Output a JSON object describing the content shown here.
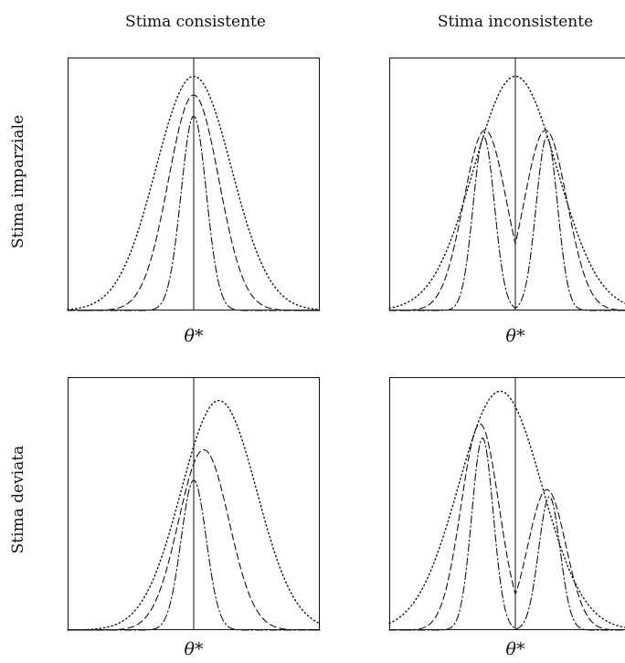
{
  "figure": {
    "col_titles": [
      "Stima consistente",
      "Stima inconsistente"
    ],
    "row_titles": [
      "Stima imparziale",
      "Stima deviata"
    ],
    "x_symbol": "θ*"
  },
  "colors": {
    "line": "#111111",
    "frame": "#111111"
  },
  "chart_data": [
    {
      "type": "line",
      "title": "",
      "column": "Stima consistente",
      "row": "Stima imparziale",
      "xlabel": "θ*",
      "xlim": [
        -1,
        1
      ],
      "ylim": [
        0,
        1.08
      ],
      "reference_x": 0,
      "grid": false,
      "series": [
        {
          "style": "dotted",
          "components": [
            {
              "mu": 0.0,
              "sigma": 0.3,
              "h": 1.0
            }
          ]
        },
        {
          "style": "dashed",
          "components": [
            {
              "mu": 0.0,
              "sigma": 0.2,
              "h": 0.92
            }
          ]
        },
        {
          "style": "dashdot",
          "components": [
            {
              "mu": 0.0,
              "sigma": 0.1,
              "h": 0.83
            }
          ]
        }
      ]
    },
    {
      "type": "line",
      "title": "",
      "column": "Stima inconsistente",
      "row": "Stima imparziale",
      "xlabel": "θ*",
      "xlim": [
        -1,
        1
      ],
      "ylim": [
        0,
        1.08
      ],
      "reference_x": 0,
      "grid": false,
      "series": [
        {
          "style": "dotted",
          "components": [
            {
              "mu": 0.0,
              "sigma": 0.33,
              "h": 1.0
            }
          ]
        },
        {
          "style": "dashed",
          "components": [
            {
              "mu": -0.24,
              "sigma": 0.17,
              "h": 0.77
            },
            {
              "mu": 0.24,
              "sigma": 0.17,
              "h": 0.77
            }
          ]
        },
        {
          "style": "dashdot",
          "components": [
            {
              "mu": -0.25,
              "sigma": 0.085,
              "h": 0.74
            },
            {
              "mu": 0.25,
              "sigma": 0.085,
              "h": 0.74
            }
          ]
        }
      ]
    },
    {
      "type": "line",
      "title": "",
      "column": "Stima consistente",
      "row": "Stima deviata",
      "xlabel": "θ*",
      "xlim": [
        -1,
        1
      ],
      "ylim": [
        0,
        1.08
      ],
      "reference_x": 0,
      "grid": false,
      "series": [
        {
          "style": "dotted",
          "components": [
            {
              "mu": 0.2,
              "sigma": 0.3,
              "h": 0.98
            }
          ]
        },
        {
          "style": "dashed",
          "components": [
            {
              "mu": 0.08,
              "sigma": 0.2,
              "h": 0.77
            }
          ]
        },
        {
          "style": "dashdot",
          "components": [
            {
              "mu": 0.0,
              "sigma": 0.1,
              "h": 0.64
            }
          ]
        }
      ]
    },
    {
      "type": "line",
      "title": "",
      "column": "Stima inconsistente",
      "row": "Stima deviata",
      "xlabel": "θ*",
      "xlim": [
        -1,
        1
      ],
      "ylim": [
        0,
        1.08
      ],
      "reference_x": 0,
      "grid": false,
      "series": [
        {
          "style": "dotted",
          "components": [
            {
              "mu": -0.12,
              "sigma": 0.33,
              "h": 1.02
            }
          ]
        },
        {
          "style": "dashed",
          "components": [
            {
              "mu": -0.28,
              "sigma": 0.15,
              "h": 0.88
            },
            {
              "mu": 0.25,
              "sigma": 0.15,
              "h": 0.6
            }
          ]
        },
        {
          "style": "dashdot",
          "components": [
            {
              "mu": -0.26,
              "sigma": 0.085,
              "h": 0.82
            },
            {
              "mu": 0.27,
              "sigma": 0.085,
              "h": 0.57
            }
          ]
        }
      ]
    }
  ]
}
